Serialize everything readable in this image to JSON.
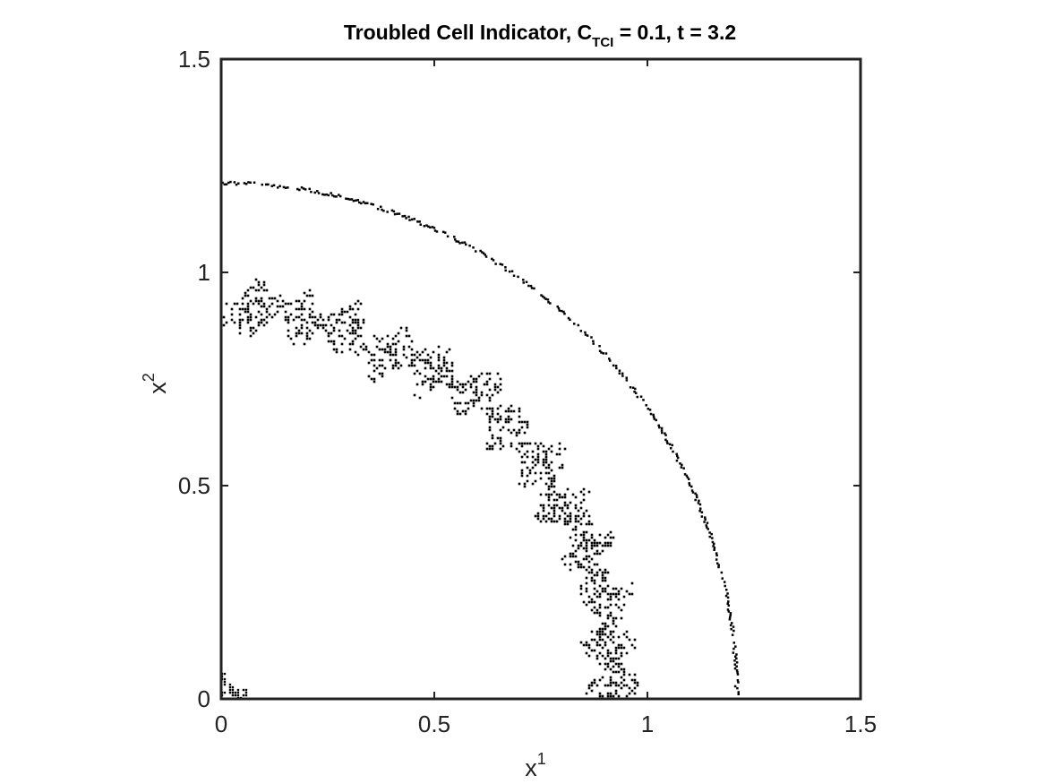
{
  "chart_data": {
    "type": "scatter",
    "title": {
      "prefix": "Troubled Cell Indicator, C",
      "subscript": "TCI",
      "suffix": " = 0.1, t = 3.2"
    },
    "xlabel": {
      "base": "x",
      "superscript": "1"
    },
    "ylabel": {
      "base": "x",
      "superscript": "2"
    },
    "xlim": [
      0,
      1.5
    ],
    "ylim": [
      0,
      1.5
    ],
    "xticks": [
      0,
      0.5,
      1,
      1.5
    ],
    "xtick_labels": [
      "0",
      "0.5",
      "1",
      "1.5"
    ],
    "yticks": [
      0,
      0.5,
      1,
      1.5
    ],
    "yticks_labels": [
      "0",
      "0.5",
      "1",
      "1.5"
    ],
    "grid": false,
    "legend": "none",
    "marker_color": "#000000",
    "series": [
      {
        "description_key": "shock_front",
        "shape": "quarter-circle arc",
        "radius": 1.21
      },
      {
        "description_key": "turbulent_band",
        "shape": "irregular quarter annulus",
        "center_radius_profile": [
          [
            0,
            0.91
          ],
          [
            10,
            0.93
          ],
          [
            20,
            0.93
          ],
          [
            30,
            0.92
          ],
          [
            40,
            0.93
          ],
          [
            50,
            0.93
          ],
          [
            60,
            0.91
          ],
          [
            70,
            0.9
          ],
          [
            80,
            0.92
          ],
          [
            90,
            0.91
          ]
        ],
        "half_width": 0.065
      },
      {
        "description_key": "corner_cluster",
        "x_range": [
          0,
          0.06
        ],
        "y_range": [
          0,
          0.06
        ]
      }
    ]
  }
}
